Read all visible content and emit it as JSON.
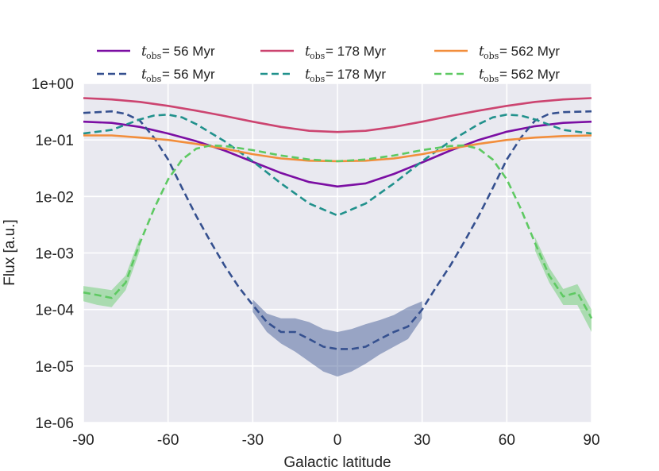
{
  "chart_data": {
    "type": "line",
    "xlabel": "Galactic latitude",
    "ylabel": "Flux [a.u.]",
    "xlim": [
      -90,
      90
    ],
    "ylim": [
      1e-06,
      1
    ],
    "yscale": "log",
    "grid": true,
    "legend_position": "top",
    "legend_columns": 3,
    "background": "#e9e9f0",
    "xticks": [
      -90,
      -60,
      -30,
      0,
      30,
      60,
      90
    ],
    "xtick_labels": [
      "-90",
      "-60",
      "-30",
      "0",
      "30",
      "60",
      "90"
    ],
    "yticks": [
      1e-06,
      1e-05,
      0.0001,
      0.001,
      0.01,
      0.1,
      1
    ],
    "ytick_labels": [
      "1e-06",
      "1e-05",
      "1e-04",
      "1e-03",
      "1e-02",
      "1e-01",
      "1e+00"
    ],
    "series": [
      {
        "name": "t_obs = 56 Myr",
        "legend_label": "= 56 Myr",
        "color": "#7b0ea3",
        "style": "solid",
        "x": [
          -90,
          -80,
          -70,
          -60,
          -50,
          -40,
          -30,
          -20,
          -10,
          0,
          10,
          20,
          30,
          40,
          50,
          60,
          70,
          80,
          90
        ],
        "y": [
          0.21,
          0.2,
          0.17,
          0.13,
          0.095,
          0.065,
          0.041,
          0.026,
          0.018,
          0.015,
          0.017,
          0.025,
          0.04,
          0.065,
          0.1,
          0.14,
          0.175,
          0.2,
          0.21
        ]
      },
      {
        "name": "t_obs = 56 Myr",
        "legend_label": "= 56 Myr",
        "color": "#35508f",
        "style": "dashed",
        "x": [
          -90,
          -80,
          -75,
          -70,
          -65,
          -60,
          -55,
          -50,
          -45,
          -40,
          -35,
          -30,
          -25,
          -20,
          -15,
          -10,
          -5,
          0,
          5,
          10,
          15,
          20,
          25,
          30,
          35,
          40,
          45,
          50,
          55,
          60,
          65,
          70,
          75,
          80,
          90
        ],
        "y": [
          0.3,
          0.32,
          0.29,
          0.22,
          0.11,
          0.045,
          0.014,
          0.0045,
          0.0016,
          0.0006,
          0.00025,
          0.00012,
          6e-05,
          4e-05,
          4e-05,
          3e-05,
          2.2e-05,
          2e-05,
          2e-05,
          2.2e-05,
          3e-05,
          4e-05,
          5e-05,
          0.0001,
          0.00025,
          0.0006,
          0.0016,
          0.0045,
          0.014,
          0.045,
          0.11,
          0.22,
          0.29,
          0.31,
          0.32
        ]
      },
      {
        "name": "t_obs = 178 Myr",
        "legend_label": "= 178 Myr",
        "color": "#cc4470",
        "style": "solid",
        "x": [
          -90,
          -80,
          -70,
          -60,
          -50,
          -40,
          -30,
          -20,
          -10,
          0,
          10,
          20,
          30,
          40,
          50,
          60,
          70,
          80,
          90
        ],
        "y": [
          0.55,
          0.52,
          0.47,
          0.4,
          0.33,
          0.265,
          0.21,
          0.17,
          0.145,
          0.138,
          0.145,
          0.17,
          0.21,
          0.265,
          0.33,
          0.4,
          0.47,
          0.52,
          0.55
        ]
      },
      {
        "name": "t_obs = 178 Myr",
        "legend_label": "= 178 Myr",
        "color": "#21918c",
        "style": "dashed",
        "x": [
          -90,
          -80,
          -70,
          -65,
          -60,
          -55,
          -50,
          -40,
          -30,
          -20,
          -10,
          0,
          10,
          20,
          30,
          40,
          50,
          55,
          60,
          65,
          70,
          80,
          90
        ],
        "y": [
          0.13,
          0.15,
          0.23,
          0.27,
          0.28,
          0.25,
          0.19,
          0.095,
          0.042,
          0.017,
          0.0075,
          0.0046,
          0.0075,
          0.017,
          0.042,
          0.095,
          0.19,
          0.25,
          0.28,
          0.27,
          0.23,
          0.15,
          0.13
        ]
      },
      {
        "name": "t_obs = 562 Myr",
        "legend_label": "= 562 Myr",
        "color": "#f28e3c",
        "style": "solid",
        "x": [
          -90,
          -80,
          -70,
          -60,
          -50,
          -40,
          -30,
          -20,
          -10,
          0,
          10,
          20,
          30,
          40,
          50,
          60,
          70,
          80,
          90
        ],
        "y": [
          0.12,
          0.12,
          0.11,
          0.1,
          0.085,
          0.07,
          0.056,
          0.047,
          0.043,
          0.042,
          0.043,
          0.047,
          0.056,
          0.07,
          0.085,
          0.1,
          0.11,
          0.117,
          0.12
        ]
      },
      {
        "name": "t_obs = 562 Myr",
        "legend_label": "= 562 Myr",
        "color": "#5ec962",
        "style": "dashed",
        "x": [
          -90,
          -85,
          -80,
          -75,
          -70,
          -65,
          -60,
          -55,
          -50,
          -45,
          -40,
          -30,
          -20,
          -10,
          0,
          10,
          20,
          30,
          40,
          45,
          50,
          55,
          60,
          65,
          70,
          75,
          80,
          85,
          90
        ],
        "y": [
          0.0002,
          0.00018,
          0.00016,
          0.0003,
          0.0015,
          0.006,
          0.02,
          0.045,
          0.07,
          0.08,
          0.078,
          0.066,
          0.053,
          0.045,
          0.042,
          0.045,
          0.053,
          0.066,
          0.078,
          0.08,
          0.07,
          0.045,
          0.02,
          0.006,
          0.0015,
          0.0004,
          0.00017,
          0.0002,
          7e-05
        ]
      }
    ],
    "bands": [
      {
        "series_index": 1,
        "color": "#35508f",
        "x": [
          -30,
          -25,
          -20,
          -15,
          -10,
          -5,
          0,
          5,
          10,
          15,
          20,
          25,
          30
        ],
        "low": [
          9e-05,
          4e-05,
          2.5e-05,
          1.8e-05,
          1.2e-05,
          8e-06,
          6.5e-06,
          8e-06,
          1.1e-05,
          1.6e-05,
          2.2e-05,
          3e-05,
          7e-05
        ],
        "high": [
          0.00015,
          8.5e-05,
          7e-05,
          7e-05,
          6e-05,
          4.5e-05,
          4e-05,
          4.5e-05,
          5.5e-05,
          6.5e-05,
          8e-05,
          0.00011,
          0.00014
        ]
      },
      {
        "series_index": 5,
        "color": "#5ec962",
        "x": [
          -90,
          -85,
          -80,
          -75,
          -70
        ],
        "low": [
          0.00014,
          0.00012,
          0.00011,
          0.00022,
          0.0011
        ],
        "high": [
          0.00026,
          0.00024,
          0.00022,
          0.0004,
          0.0019
        ]
      },
      {
        "series_index": 5,
        "color": "#5ec962",
        "x": [
          70,
          75,
          80,
          85,
          90
        ],
        "low": [
          0.0011,
          0.0003,
          0.00012,
          0.00012,
          4e-05
        ],
        "high": [
          0.0019,
          0.00055,
          0.00023,
          0.00028,
          0.0001
        ]
      }
    ]
  }
}
